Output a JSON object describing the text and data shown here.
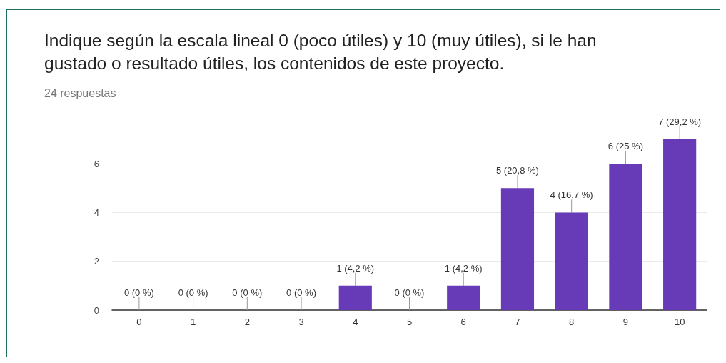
{
  "chart_data": {
    "type": "bar",
    "title": "Indique según la escala lineal 0 (poco útiles) y 10 (muy útiles), si le han gustado o resultado útiles, los contenidos de este proyecto.",
    "subtitle": "24 respuestas",
    "categories": [
      "0",
      "1",
      "2",
      "3",
      "4",
      "5",
      "6",
      "7",
      "8",
      "9",
      "10"
    ],
    "values": [
      0,
      0,
      0,
      0,
      1,
      0,
      1,
      5,
      4,
      6,
      7
    ],
    "value_labels": [
      "0 (0 %)",
      "0 (0 %)",
      "0 (0 %)",
      "0 (0 %)",
      "1 (4,2 %)",
      "0 (0 %)",
      "1 (4,2 %)",
      "5 (20,8 %)",
      "4 (16,7 %)",
      "6 (25 %)",
      "7 (29,2 %)"
    ],
    "color": "#673ab7",
    "ylim": [
      0,
      7
    ],
    "yticks": [
      0,
      2,
      4,
      6
    ],
    "grid": "y"
  }
}
